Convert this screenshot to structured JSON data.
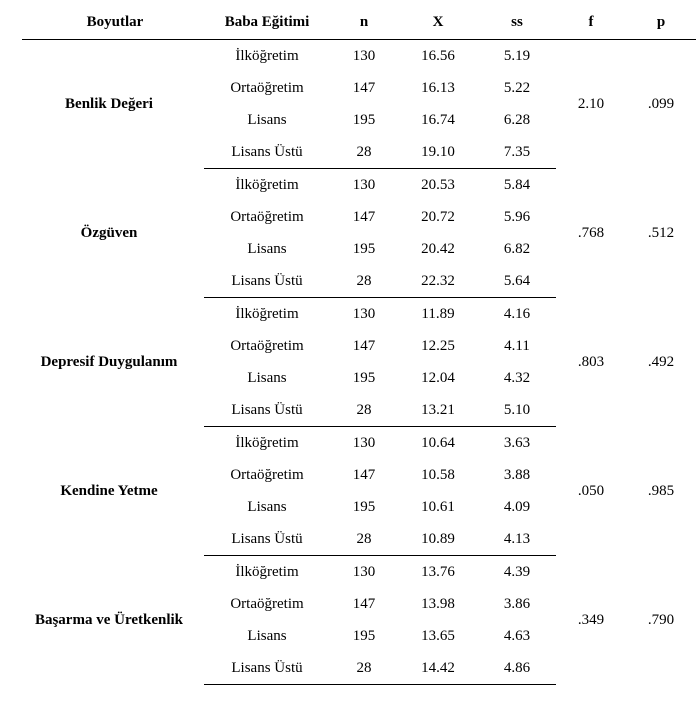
{
  "header": {
    "dim": "Boyutlar",
    "edu": "Baba Eğitimi",
    "n": "n",
    "x": "X",
    "ss": "ss",
    "f": "f",
    "p": "p"
  },
  "groups": [
    {
      "dim": "Benlik Değeri",
      "f": "2.10",
      "p": ".099",
      "rows": [
        {
          "edu": "İlköğretim",
          "n": "130",
          "x": "16.56",
          "ss": "5.19"
        },
        {
          "edu": "Ortaöğretim",
          "n": "147",
          "x": "16.13",
          "ss": "5.22"
        },
        {
          "edu": "Lisans",
          "n": "195",
          "x": "16.74",
          "ss": "6.28"
        },
        {
          "edu": "Lisans Üstü",
          "n": "28",
          "x": "19.10",
          "ss": "7.35"
        }
      ]
    },
    {
      "dim": "Özgüven",
      "f": ".768",
      "p": ".512",
      "rows": [
        {
          "edu": "İlköğretim",
          "n": "130",
          "x": "20.53",
          "ss": "5.84"
        },
        {
          "edu": "Ortaöğretim",
          "n": "147",
          "x": "20.72",
          "ss": "5.96"
        },
        {
          "edu": "Lisans",
          "n": "195",
          "x": "20.42",
          "ss": "6.82"
        },
        {
          "edu": "Lisans Üstü",
          "n": "28",
          "x": "22.32",
          "ss": "5.64"
        }
      ]
    },
    {
      "dim": "Depresif Duygulanım",
      "f": ".803",
      "p": ".492",
      "rows": [
        {
          "edu": "İlköğretim",
          "n": "130",
          "x": "11.89",
          "ss": "4.16"
        },
        {
          "edu": "Ortaöğretim",
          "n": "147",
          "x": "12.25",
          "ss": "4.11"
        },
        {
          "edu": "Lisans",
          "n": "195",
          "x": "12.04",
          "ss": "4.32"
        },
        {
          "edu": "Lisans Üstü",
          "n": "28",
          "x": "13.21",
          "ss": "5.10"
        }
      ]
    },
    {
      "dim": "Kendine Yetme",
      "f": ".050",
      "p": ".985",
      "rows": [
        {
          "edu": "İlköğretim",
          "n": "130",
          "x": "10.64",
          "ss": "3.63"
        },
        {
          "edu": "Ortaöğretim",
          "n": "147",
          "x": "10.58",
          "ss": "3.88"
        },
        {
          "edu": "Lisans",
          "n": "195",
          "x": "10.61",
          "ss": "4.09"
        },
        {
          "edu": "Lisans Üstü",
          "n": "28",
          "x": "10.89",
          "ss": "4.13"
        }
      ]
    },
    {
      "dim": "Başarma ve Üretkenlik",
      "f": ".349",
      "p": ".790",
      "rows": [
        {
          "edu": "İlköğretim",
          "n": "130",
          "x": "13.76",
          "ss": "4.39"
        },
        {
          "edu": "Ortaöğretim",
          "n": "147",
          "x": "13.98",
          "ss": "3.86"
        },
        {
          "edu": "Lisans",
          "n": "195",
          "x": "13.65",
          "ss": "4.63"
        },
        {
          "edu": "Lisans Üstü",
          "n": "28",
          "x": "14.42",
          "ss": "4.86"
        }
      ]
    }
  ]
}
